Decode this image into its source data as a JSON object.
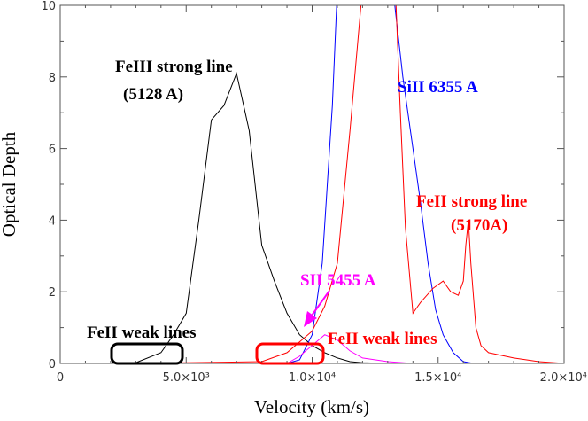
{
  "chart_data": {
    "type": "line",
    "xlabel": "Velocity (km/s)",
    "ylabel": "Optical Depth",
    "xlim": [
      0,
      20000
    ],
    "ylim": [
      0,
      10
    ],
    "grid": false,
    "x_ticks": [
      {
        "value": 0,
        "label": "0"
      },
      {
        "value": 5000,
        "label": "5.0×10³"
      },
      {
        "value": 10000,
        "label": "1.0×10⁴"
      },
      {
        "value": 15000,
        "label": "1.5×10⁴"
      },
      {
        "value": 20000,
        "label": "2.0×10⁴"
      }
    ],
    "y_ticks": [
      {
        "value": 0,
        "label": "0"
      },
      {
        "value": 2,
        "label": "2"
      },
      {
        "value": 4,
        "label": "4"
      },
      {
        "value": 6,
        "label": "6"
      },
      {
        "value": 8,
        "label": "8"
      },
      {
        "value": 10,
        "label": "10"
      }
    ],
    "series": [
      {
        "color": "#000000",
        "points": [
          [
            2000,
            0
          ],
          [
            3000,
            0.02
          ],
          [
            4000,
            0.3
          ],
          [
            4500,
            0.8
          ],
          [
            5000,
            1.4
          ],
          [
            5500,
            4.0
          ],
          [
            6000,
            6.8
          ],
          [
            6500,
            7.2
          ],
          [
            7000,
            8.1
          ],
          [
            7500,
            6.5
          ],
          [
            8000,
            3.3
          ],
          [
            8500,
            2.3
          ],
          [
            9000,
            1.4
          ],
          [
            9500,
            0.8
          ],
          [
            10000,
            0.5
          ],
          [
            10500,
            0.3
          ],
          [
            11000,
            0.15
          ],
          [
            11500,
            0.05
          ],
          [
            12000,
            0.02
          ],
          [
            13000,
            0
          ],
          [
            14000,
            0
          ],
          [
            20000,
            0
          ]
        ]
      },
      {
        "color": "#0000ff",
        "points": [
          [
            3000,
            0
          ],
          [
            9000,
            0
          ],
          [
            9500,
            0.1
          ],
          [
            10000,
            0.8
          ],
          [
            10400,
            2.8
          ],
          [
            10800,
            7.2
          ],
          [
            11000,
            10.5
          ],
          [
            11500,
            14
          ],
          [
            12500,
            14
          ],
          [
            13200,
            10.5
          ],
          [
            13600,
            8.0
          ],
          [
            14000,
            6.0
          ],
          [
            14300,
            4.5
          ],
          [
            14600,
            2.8
          ],
          [
            14900,
            1.5
          ],
          [
            15200,
            0.8
          ],
          [
            15600,
            0.3
          ],
          [
            16000,
            0.05
          ],
          [
            16400,
            0
          ],
          [
            20000,
            0
          ]
        ]
      },
      {
        "color": "#ff0000",
        "points": [
          [
            3000,
            0
          ],
          [
            8000,
            0.05
          ],
          [
            9000,
            0.3
          ],
          [
            9500,
            0.6
          ],
          [
            10000,
            0.9
          ],
          [
            10500,
            1.6
          ],
          [
            11000,
            2.8
          ],
          [
            11500,
            6.5
          ],
          [
            12000,
            10.5
          ],
          [
            12500,
            14
          ],
          [
            13000,
            14
          ],
          [
            13300,
            10.5
          ],
          [
            13500,
            7.0
          ],
          [
            13700,
            3.8
          ],
          [
            14000,
            1.4
          ],
          [
            14300,
            1.7
          ],
          [
            14800,
            2.1
          ],
          [
            15200,
            2.3
          ],
          [
            15500,
            2.0
          ],
          [
            15800,
            1.9
          ],
          [
            16000,
            2.3
          ],
          [
            16100,
            3.3
          ],
          [
            16200,
            4.0
          ],
          [
            16300,
            2.8
          ],
          [
            16500,
            1.0
          ],
          [
            16700,
            0.5
          ],
          [
            17000,
            0.3
          ],
          [
            18000,
            0.15
          ],
          [
            19000,
            0.05
          ],
          [
            20000,
            0
          ]
        ]
      },
      {
        "color": "#ff00ff",
        "points": [
          [
            3000,
            0
          ],
          [
            9000,
            0
          ],
          [
            9500,
            0.2
          ],
          [
            10000,
            0.5
          ],
          [
            10500,
            0.8
          ],
          [
            11000,
            0.65
          ],
          [
            11500,
            0.35
          ],
          [
            12000,
            0.15
          ],
          [
            13000,
            0.05
          ],
          [
            14000,
            0
          ],
          [
            20000,
            0
          ]
        ]
      }
    ],
    "annotations": [
      {
        "lines": [
          "FeIII strong line",
          "(5128 A)"
        ],
        "color": "#000000"
      },
      {
        "lines": [
          "SiII 6355 A"
        ],
        "color": "#0000ff"
      },
      {
        "lines": [
          "FeII strong line",
          "(5170A)"
        ],
        "color": "#ff0000"
      },
      {
        "lines": [
          "SII 5455 A"
        ],
        "color": "#ff00ff"
      },
      {
        "lines": [
          "FeII weak lines"
        ],
        "color": "#ff0000"
      },
      {
        "lines": [
          "FeII weak lines"
        ],
        "color": "#000000"
      }
    ]
  }
}
